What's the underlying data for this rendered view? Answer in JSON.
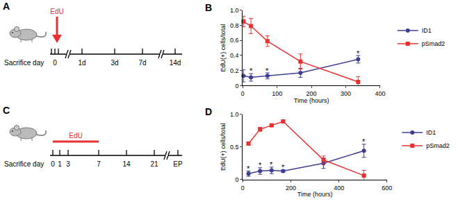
{
  "diagrams": [
    {
      "panel": "A",
      "marker_label": "EdU",
      "axis_label": "Sacrifice day",
      "ticks": [
        "0",
        "1d",
        "3d",
        "7d",
        "14d"
      ]
    },
    {
      "panel": "C",
      "marker_label": "EdU",
      "axis_label": "Sacrifice day",
      "ticks": [
        "0",
        "1",
        "3",
        "7",
        "14",
        "21",
        "EP"
      ]
    }
  ],
  "chart_data": [
    {
      "panel": "B",
      "type": "line",
      "x_label": "Time (hours)",
      "y_label": "EdU(+) cells/total",
      "xlim": [
        0,
        400
      ],
      "xticks": [
        0,
        100,
        200,
        300,
        400
      ],
      "ylim": [
        0,
        1.0
      ],
      "yticks": [
        0,
        0.2,
        0.4,
        0.6,
        0.8,
        {
          "value": 1.0,
          "label": "1.0"
        }
      ],
      "legend": "right",
      "x": [
        2,
        24,
        72,
        168,
        336
      ],
      "series": [
        {
          "name": "ID1",
          "color": "#3d3d94",
          "marker": "circle",
          "values": [
            0.13,
            0.11,
            0.13,
            0.17,
            0.35
          ],
          "errors": [
            0.08,
            0.05,
            0.04,
            0.06,
            0.05
          ]
        },
        {
          "name": "pSmad2",
          "color": "#e8312f",
          "marker": "square",
          "values": [
            0.85,
            0.79,
            0.59,
            0.32,
            0.05
          ],
          "errors": [
            0.07,
            0.1,
            0.07,
            0.1,
            0.07
          ]
        }
      ],
      "annotations": [
        {
          "text": "*",
          "x": 24,
          "y": 0.2
        },
        {
          "text": "*",
          "x": 72,
          "y": 0.2
        },
        {
          "text": "*",
          "x": 336,
          "y": 0.43
        }
      ]
    },
    {
      "panel": "D",
      "type": "line",
      "x_label": "Time (hours)",
      "y_label": "EdU(+) cells/total",
      "xlim": [
        0,
        600
      ],
      "xticks": [
        0,
        200,
        400,
        600
      ],
      "ylim": [
        0,
        1.0
      ],
      "yticks": [
        0,
        0.5,
        {
          "value": 1.0,
          "label": "1.0"
        }
      ],
      "legend": "right",
      "x": [
        24,
        72,
        120,
        168,
        336,
        504
      ],
      "series": [
        {
          "name": "ID1",
          "color": "#3d3d94",
          "marker": "circle",
          "values": [
            0.09,
            0.13,
            0.14,
            0.13,
            0.25,
            0.44
          ],
          "errors": [
            0.04,
            0.05,
            0.05,
            0.02,
            0.08,
            0.1
          ]
        },
        {
          "name": "pSmad2",
          "color": "#e8312f",
          "marker": "square",
          "values": [
            0.55,
            0.77,
            0.83,
            0.89,
            0.3,
            0.06
          ],
          "errors": [
            0.02,
            0.03,
            0.02,
            0.02,
            0.06,
            0.08
          ]
        }
      ],
      "annotations": [
        {
          "text": "*",
          "x": 24,
          "y": 0.17
        },
        {
          "text": "*",
          "x": 72,
          "y": 0.22
        },
        {
          "text": "*",
          "x": 120,
          "y": 0.23
        },
        {
          "text": "*",
          "x": 168,
          "y": 0.19
        },
        {
          "text": "*",
          "x": 504,
          "y": 0.58
        }
      ]
    }
  ]
}
